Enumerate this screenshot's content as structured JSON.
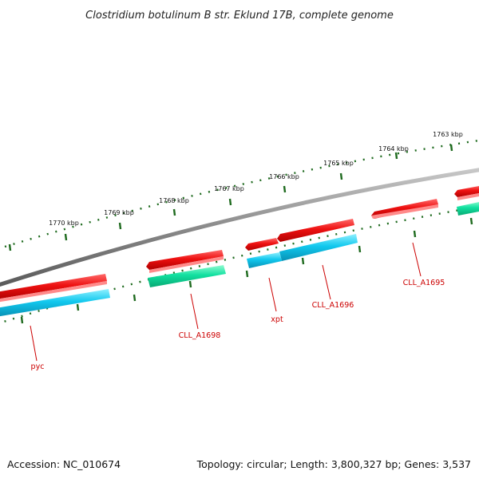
{
  "title": "Clostridium botulinum B str. Eklund 17B, complete genome",
  "footer": {
    "accession": "Accession: NC_010674",
    "summary": "Topology: circular; Length: 3,800,327 bp; Genes: 3,537"
  },
  "colors": {
    "backbone": "#8a8a8a",
    "forward_gene": "#ee1111",
    "reverse_cyan": "#11c8ee",
    "reverse_teal": "#11e0a0",
    "tick": "#1f6b1f",
    "label_line": "#cc0000",
    "label_text": "#cc0000"
  },
  "ruler": {
    "unit": "kbp",
    "labels": [
      "1763 kbp",
      "1764 kbp",
      "1765 kbp",
      "1766 kbp",
      "1767 kbp",
      "1768 kbp",
      "1769 kbp",
      "1770 kbp"
    ]
  },
  "genes": [
    {
      "name": "pyc",
      "strand": "-",
      "color": "reverse_cyan"
    },
    {
      "name": "CLL_A1698",
      "strand": "-",
      "color": "reverse_teal"
    },
    {
      "name": "xpt",
      "strand": "+",
      "color": "forward_gene"
    },
    {
      "name": "CLL_A1696",
      "strand": "-",
      "color": "reverse_cyan"
    },
    {
      "name": "CLL_A1695",
      "strand": "+",
      "color": "forward_gene"
    }
  ]
}
